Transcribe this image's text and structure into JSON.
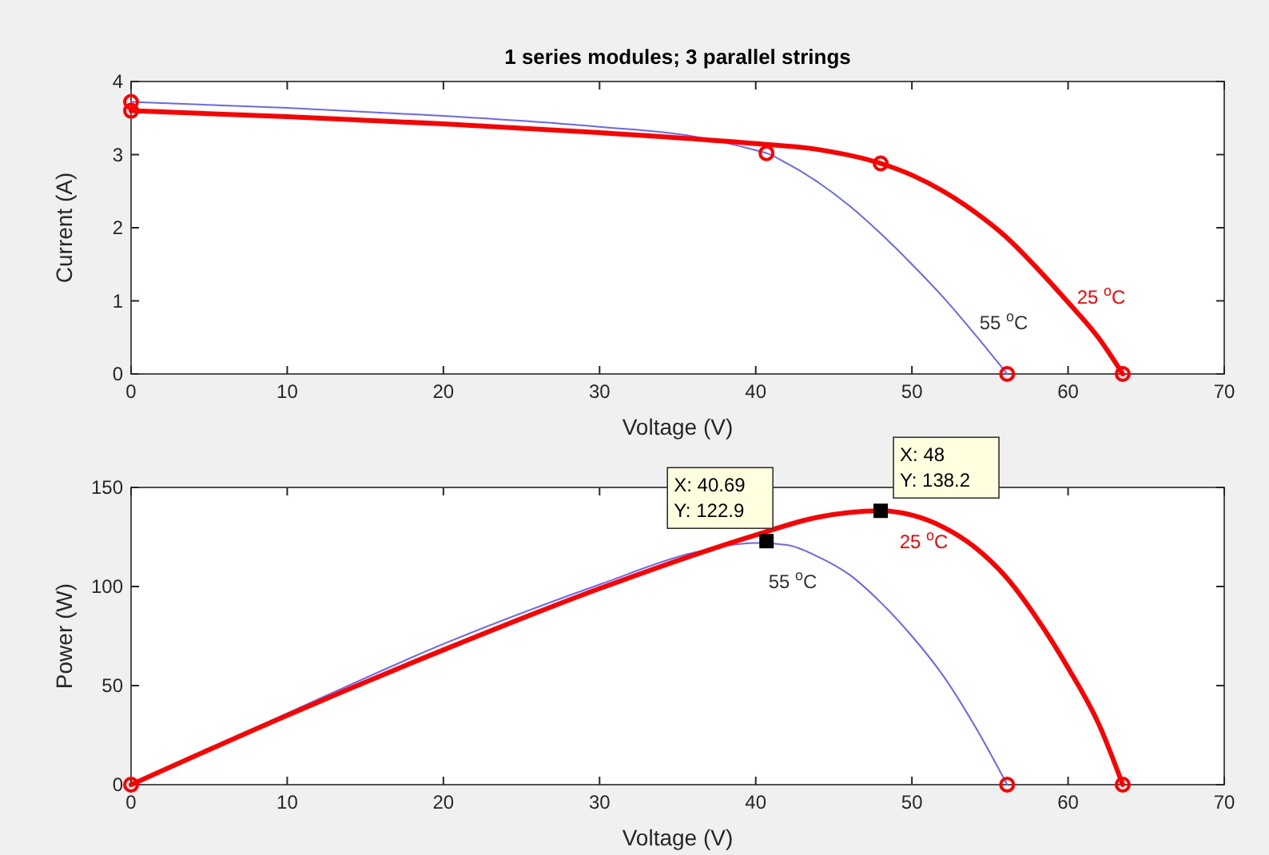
{
  "chart_data": [
    {
      "type": "line",
      "title": "1 series modules; 3 parallel strings",
      "xlabel": "Voltage (V)",
      "ylabel": "Current (A)",
      "xlim": [
        0,
        70
      ],
      "ylim": [
        0,
        4
      ],
      "xticks": [
        0,
        10,
        20,
        30,
        40,
        50,
        60,
        70
      ],
      "yticks": [
        0,
        1,
        2,
        3,
        4
      ],
      "grid": false,
      "series": [
        {
          "name": "55 $^{o}$C",
          "color": "#6666ff",
          "marker": "none",
          "x": [
            0,
            10,
            20,
            30,
            36,
            40,
            40.69,
            42,
            44,
            46,
            48,
            50,
            52,
            54,
            56.1
          ],
          "values": [
            3.72,
            3.64,
            3.53,
            3.38,
            3.25,
            3.06,
            3.02,
            2.88,
            2.62,
            2.3,
            1.92,
            1.5,
            1.05,
            0.55,
            0
          ]
        },
        {
          "name": "25 $^{o}$C",
          "color": "#ff0000",
          "marker": "none",
          "x": [
            0,
            10,
            20,
            30,
            40,
            44,
            48,
            50,
            52,
            54,
            56,
            58,
            60,
            62,
            63.5
          ],
          "values": [
            3.6,
            3.52,
            3.42,
            3.3,
            3.15,
            3.07,
            2.88,
            2.72,
            2.5,
            2.22,
            1.88,
            1.45,
            0.98,
            0.48,
            0
          ]
        },
        {
          "type": "scatter",
          "color": "#ff0000",
          "marker": "circle",
          "x": [
            0,
            40.69,
            56.1
          ],
          "values": [
            3.72,
            3.02,
            0
          ]
        },
        {
          "type": "scatter",
          "color": "#ff0000",
          "marker": "circle",
          "x": [
            0,
            48,
            63.5
          ],
          "values": [
            3.6,
            2.88,
            0
          ]
        }
      ]
    },
    {
      "type": "line",
      "xlabel": "Voltage (V)",
      "ylabel": "Power (W)",
      "xlim": [
        0,
        70
      ],
      "ylim": [
        0,
        150
      ],
      "xticks": [
        0,
        10,
        20,
        30,
        40,
        50,
        60,
        70
      ],
      "yticks": [
        0,
        50,
        100,
        150
      ],
      "grid": false,
      "series": [
        {
          "name": "55 $^{o}$C",
          "color": "#6666ff",
          "marker": "none",
          "x": [
            0,
            10,
            20,
            30,
            36,
            40,
            42,
            44,
            46,
            48,
            50,
            52,
            54,
            56.1
          ],
          "values": [
            0,
            36,
            71,
            101,
            117,
            122,
            121,
            115,
            106,
            92,
            75,
            55,
            30,
            0
          ]
        },
        {
          "name": "25 $^{o}$C",
          "color": "#ff0000",
          "marker": "none",
          "x": [
            0,
            10,
            20,
            30,
            40,
            44,
            48,
            50,
            52,
            54,
            56,
            58,
            60,
            62,
            63.5
          ],
          "values": [
            0,
            35,
            68,
            99,
            126,
            135,
            138.2,
            136,
            130,
            120,
            105,
            84,
            59,
            30,
            0
          ]
        },
        {
          "type": "scatter",
          "color": "#ff0000",
          "marker": "circle",
          "x": [
            0,
            56.1,
            63.5
          ],
          "values": [
            0,
            0,
            0
          ]
        },
        {
          "type": "scatter",
          "color": "#000000",
          "marker": "square",
          "x": [
            40.69,
            48
          ],
          "values": [
            122.9,
            138.2
          ]
        }
      ],
      "annotations": [
        {
          "text": "X: 40.69\nY: 122.9",
          "x": 40.69,
          "y": 122.9
        },
        {
          "text": "X: 48\nY: 138.2",
          "x": 48,
          "y": 138.2
        }
      ]
    }
  ]
}
